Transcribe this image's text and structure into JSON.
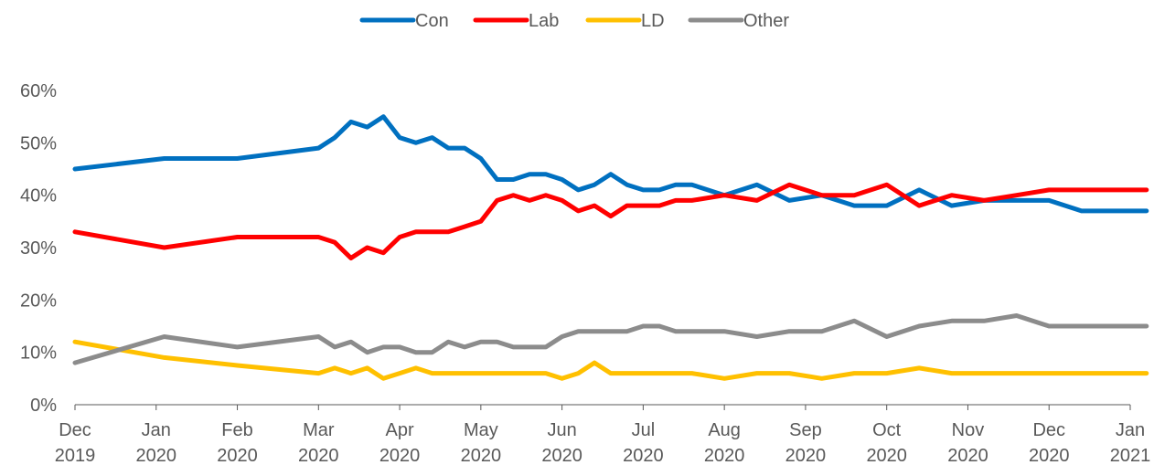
{
  "chart_data": {
    "type": "line",
    "title": "",
    "xlabel": "",
    "ylabel": "",
    "ylim": [
      0,
      60
    ],
    "ytick_values": [
      0,
      10,
      20,
      30,
      40,
      50,
      60
    ],
    "ytick_labels": [
      "0%",
      "10%",
      "20%",
      "30%",
      "40%",
      "50%",
      "60%"
    ],
    "xtick_values": [
      0,
      1,
      2,
      3,
      4,
      5,
      6,
      7,
      8,
      9,
      10,
      11,
      12,
      13
    ],
    "xtick_labels": [
      [
        "Dec",
        "2019"
      ],
      [
        "Jan",
        "2020"
      ],
      [
        "Feb",
        "2020"
      ],
      [
        "Mar",
        "2020"
      ],
      [
        "Apr",
        "2020"
      ],
      [
        "May",
        "2020"
      ],
      [
        "Jun",
        "2020"
      ],
      [
        "Jul",
        "2020"
      ],
      [
        "Aug",
        "2020"
      ],
      [
        "Sep",
        "2020"
      ],
      [
        "Oct",
        "2020"
      ],
      [
        "Nov",
        "2020"
      ],
      [
        "Dec",
        "2020"
      ],
      [
        "Jan",
        "2021"
      ]
    ],
    "grid": false,
    "legend_position": "top-center",
    "x": [
      0,
      1.1,
      2,
      3,
      3.2,
      3.4,
      3.6,
      3.8,
      4,
      4.2,
      4.4,
      4.6,
      4.8,
      5,
      5.2,
      5.4,
      5.6,
      5.8,
      6,
      6.2,
      6.4,
      6.6,
      6.8,
      7,
      7.2,
      7.4,
      7.6,
      8,
      8.4,
      8.8,
      9.2,
      9.6,
      10,
      10.4,
      10.8,
      11.2,
      11.6,
      12,
      12.4,
      12.8,
      13.2
    ],
    "series": [
      {
        "name": "Con",
        "color": "#0070c0",
        "values": [
          45,
          47,
          47,
          49,
          51,
          54,
          53,
          55,
          51,
          50,
          51,
          49,
          49,
          47,
          43,
          43,
          44,
          44,
          43,
          41,
          42,
          44,
          42,
          41,
          41,
          42,
          42,
          40,
          42,
          39,
          40,
          38,
          38,
          41,
          38,
          39,
          39,
          39,
          37,
          37,
          37
        ]
      },
      {
        "name": "Lab",
        "color": "#ff0000",
        "values": [
          33,
          30,
          32,
          32,
          31,
          28,
          30,
          29,
          32,
          33,
          33,
          33,
          34,
          35,
          39,
          40,
          39,
          40,
          39,
          37,
          38,
          36,
          38,
          38,
          38,
          39,
          39,
          40,
          39,
          42,
          40,
          40,
          42,
          38,
          40,
          39,
          40,
          41,
          41,
          41,
          41
        ]
      },
      {
        "name": "LD",
        "color": "#ffc000",
        "values": [
          12,
          9,
          7.5,
          6,
          7,
          6,
          7,
          5,
          6,
          7,
          6,
          6,
          6,
          6,
          6,
          6,
          6,
          6,
          5,
          6,
          8,
          6,
          6,
          6,
          6,
          6,
          6,
          5,
          6,
          6,
          5,
          6,
          6,
          7,
          6,
          6,
          6,
          6,
          6,
          6,
          6
        ]
      },
      {
        "name": "Other",
        "color": "#8c8c8c",
        "values": [
          8,
          13,
          11,
          13,
          11,
          12,
          10,
          11,
          11,
          10,
          10,
          12,
          11,
          12,
          12,
          11,
          11,
          11,
          13,
          14,
          14,
          14,
          14,
          15,
          15,
          14,
          14,
          14,
          13,
          14,
          14,
          16,
          13,
          15,
          16,
          16,
          17,
          15,
          15,
          15,
          15
        ]
      }
    ]
  }
}
